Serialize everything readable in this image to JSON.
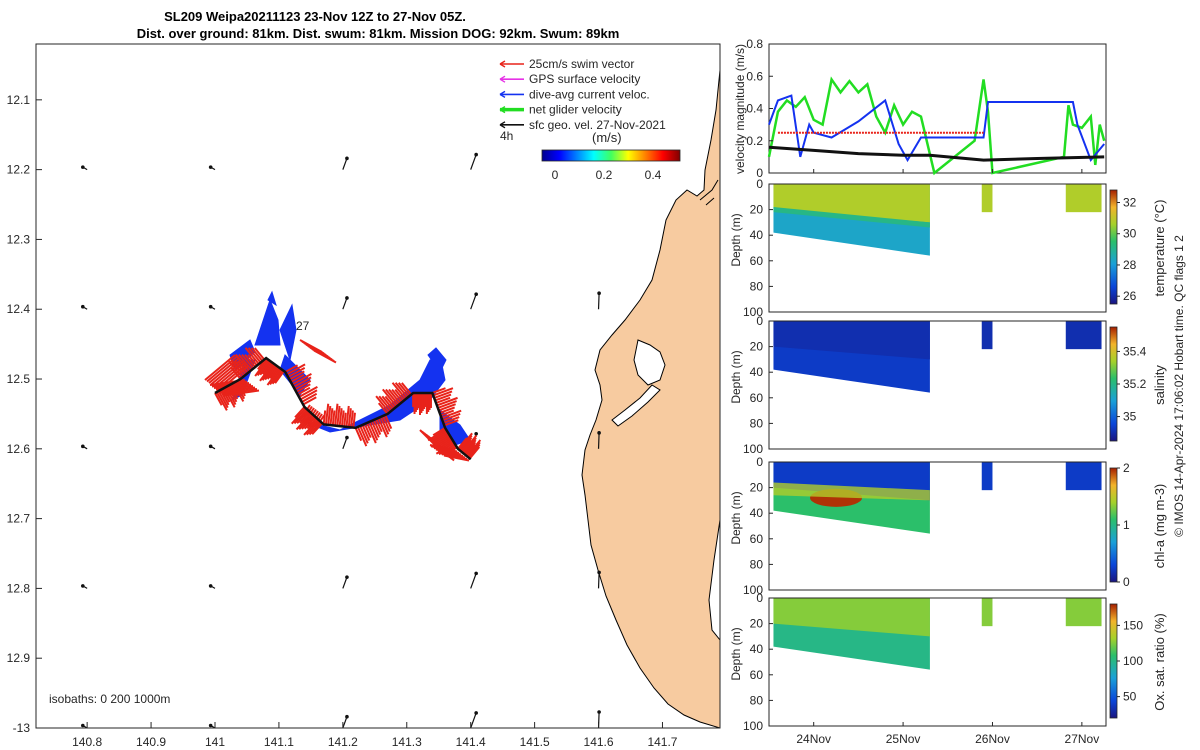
{
  "title": {
    "line1": "SL209 Weipa20211123 23-Nov 12Z to 27-Nov 05Z.",
    "line2": "Dist. over ground: 81km. Dist. swum: 81km. Mission DOG: 92km. Swum: 89km"
  },
  "colors": {
    "land": "#f7cba0",
    "swim": "#e8231a",
    "gps": "#e632e6",
    "diveavg": "#1432f0",
    "net": "#22dd22",
    "sfc": "#111111"
  },
  "map": {
    "xlim": [
      140.72,
      141.79
    ],
    "ylim": [
      -13.0,
      -12.02
    ],
    "xticks": [
      "140.8",
      "140.9",
      "141",
      "141.1",
      "141.2",
      "141.3",
      "141.4",
      "141.5",
      "141.6",
      "141.7"
    ],
    "yticks": [
      "12.1",
      "12.2",
      "12.3",
      "12.4",
      "12.5",
      "12.6",
      "12.7",
      "12.8",
      "12.9",
      "-13"
    ],
    "label_4h": "4h",
    "label_27": "27",
    "isobaths": "isobaths: 0   200  1000m",
    "colorbar_title": "(m/s)",
    "colorbar_ticks": [
      "0",
      "0.2",
      "0.4"
    ],
    "legend": [
      {
        "label": "25cm/s swim vector",
        "color": "#e8231a"
      },
      {
        "label": "GPS surface velocity",
        "color": "#e632e6"
      },
      {
        "label": "dive-avg current veloc.",
        "color": "#1432f0"
      },
      {
        "label": "net glider velocity",
        "color": "#22dd22"
      },
      {
        "label": "sfc geo. vel. 27-Nov-2021",
        "color": "#111111"
      }
    ],
    "track": [
      [
        141.0,
        -12.52
      ],
      [
        141.04,
        -12.5
      ],
      [
        141.08,
        -12.47
      ],
      [
        141.11,
        -12.49
      ],
      [
        141.14,
        -12.54
      ],
      [
        141.17,
        -12.565
      ],
      [
        141.22,
        -12.57
      ],
      [
        141.27,
        -12.55
      ],
      [
        141.31,
        -12.52
      ],
      [
        141.34,
        -12.52
      ],
      [
        141.36,
        -12.57
      ],
      [
        141.38,
        -12.6
      ],
      [
        141.4,
        -12.615
      ]
    ]
  },
  "velocity": {
    "ylabel": "velocity magnitude (m/s)",
    "ylim": [
      0,
      0.8
    ],
    "yticks": [
      "0",
      "0.2",
      "0.4",
      "0.6",
      "0.8"
    ],
    "xlim": [
      23.5,
      27.27
    ],
    "series": [
      {
        "name": "net glider velocity",
        "color": "#22dd22",
        "x": [
          23.5,
          23.6,
          23.7,
          23.8,
          23.9,
          24.0,
          24.1,
          24.2,
          24.3,
          24.4,
          24.5,
          24.6,
          24.7,
          24.8,
          24.9,
          25.0,
          25.1,
          25.2,
          25.35,
          25.8,
          25.9,
          25.95,
          26.0,
          26.8,
          26.85,
          26.9,
          27.0,
          27.1,
          27.15,
          27.2,
          27.25
        ],
        "y": [
          0.1,
          0.38,
          0.45,
          0.41,
          0.47,
          0.33,
          0.3,
          0.58,
          0.5,
          0.57,
          0.5,
          0.55,
          0.35,
          0.25,
          0.42,
          0.3,
          0.38,
          0.35,
          0.0,
          0.2,
          0.58,
          0.38,
          0.0,
          0.1,
          0.42,
          0.3,
          0.28,
          0.35,
          0.05,
          0.3,
          0.2
        ]
      },
      {
        "name": "dive-avg current veloc.",
        "color": "#1432f0",
        "x": [
          23.5,
          23.6,
          23.75,
          23.85,
          23.95,
          24.0,
          24.2,
          24.5,
          24.8,
          24.95,
          25.05,
          25.2,
          25.3,
          25.5,
          25.9,
          25.95,
          26.9,
          26.95,
          27.1,
          27.25
        ],
        "y": [
          0.3,
          0.45,
          0.48,
          0.1,
          0.3,
          0.25,
          0.22,
          0.32,
          0.45,
          0.18,
          0.08,
          0.22,
          0.22,
          0.22,
          0.22,
          0.44,
          0.44,
          0.3,
          0.08,
          0.18
        ]
      },
      {
        "name": "swim",
        "color": "#e8231a",
        "x": [
          23.6,
          25.9
        ],
        "y": [
          0.25,
          0.25
        ]
      },
      {
        "name": "sfc",
        "color": "#111111",
        "x": [
          23.5,
          24.0,
          24.5,
          25.0,
          25.3,
          25.9,
          26.5,
          27.25
        ],
        "y": [
          0.16,
          0.14,
          0.12,
          0.11,
          0.11,
          0.08,
          0.09,
          0.1
        ]
      }
    ]
  },
  "sections": {
    "depth_ylabel": "Depth (m)",
    "depth_ticks": [
      "0",
      "20",
      "40",
      "60",
      "80",
      "100"
    ],
    "panels": [
      {
        "key": "temperature",
        "label": "temperature (°C)",
        "ticks": [
          "26",
          "28",
          "30",
          "32"
        ],
        "vmin": 25.5,
        "vmax": 32.8
      },
      {
        "key": "salinity",
        "label": "salinity",
        "ticks": [
          "35",
          "35.2",
          "35.4"
        ],
        "vmin": 34.85,
        "vmax": 35.55
      },
      {
        "key": "chla",
        "label": "chl-a (mg m-3)",
        "ticks": [
          "0",
          "1",
          "2"
        ],
        "vmin": 0,
        "vmax": 2
      },
      {
        "key": "oxygen",
        "label": "Ox. sat. ratio (%)",
        "ticks": [
          "50",
          "100",
          "150"
        ],
        "vmin": 20,
        "vmax": 180
      }
    ],
    "date_ticks": [
      "24Nov",
      "25Nov",
      "26Nov",
      "27Nov"
    ],
    "footer": "© IMOS 14-Apr-2024 17:06:02 Hobart time. QC flags 1  2"
  }
}
